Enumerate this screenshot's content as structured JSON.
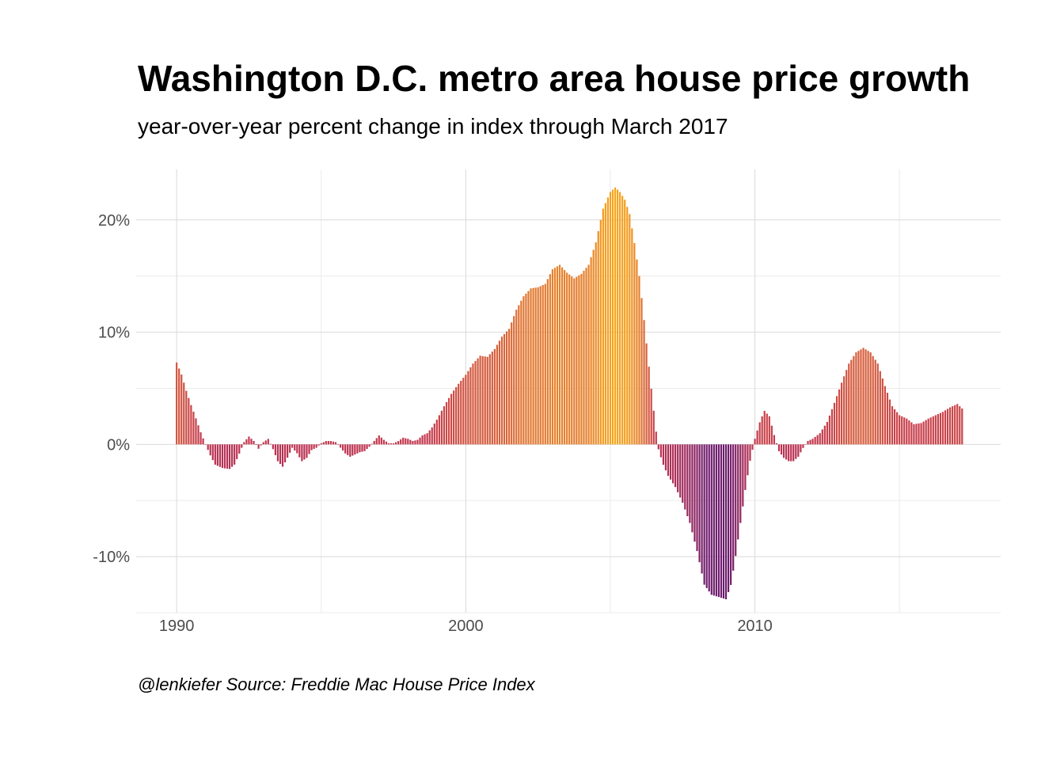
{
  "title": "Washington D.C. metro area house price growth",
  "subtitle": "year-over-year percent change in index through March 2017",
  "caption": "@lenkiefer Source: Freddie Mac House Price Index",
  "chart_data": {
    "type": "bar",
    "title": "Washington D.C. metro area house price growth",
    "subtitle": "year-over-year percent change in index through March 2017",
    "xlabel": "",
    "ylabel": "",
    "x_start": "1990-01",
    "x_end": "2017-03",
    "frequency": "monthly",
    "xlim": [
      1988.6,
      2018.5
    ],
    "ylim": [
      -15,
      24.5
    ],
    "x_ticks": [
      1990,
      2000,
      2010
    ],
    "x_tick_labels": [
      "1990",
      "2000",
      "2010"
    ],
    "y_ticks": [
      -10,
      0,
      10,
      20
    ],
    "y_tick_labels": [
      "-10%",
      "0%",
      "10%",
      "20%"
    ],
    "grid": true,
    "color_scale": {
      "low": "#6a1a6e",
      "mid": "#c2344f",
      "high": "#f7a51b",
      "low_value": -14,
      "mid_value": 0,
      "high_value": 23
    },
    "anchors": [
      [
        1990.0,
        7.3
      ],
      [
        1990.17,
        6.2
      ],
      [
        1990.33,
        4.8
      ],
      [
        1990.5,
        3.5
      ],
      [
        1990.67,
        2.3
      ],
      [
        1990.83,
        1.1
      ],
      [
        1991.0,
        0
      ],
      [
        1991.17,
        -1.0
      ],
      [
        1991.33,
        -1.8
      ],
      [
        1991.58,
        -2.1
      ],
      [
        1991.83,
        -2.2
      ],
      [
        1992.0,
        -1.8
      ],
      [
        1992.17,
        -0.8
      ],
      [
        1992.33,
        0.2
      ],
      [
        1992.5,
        0.7
      ],
      [
        1992.67,
        0.3
      ],
      [
        1992.83,
        -0.4
      ],
      [
        1993.0,
        0.2
      ],
      [
        1993.17,
        0.5
      ],
      [
        1993.33,
        -0.4
      ],
      [
        1993.5,
        -1.5
      ],
      [
        1993.67,
        -2.0
      ],
      [
        1993.83,
        -1.2
      ],
      [
        1994.0,
        -0.3
      ],
      [
        1994.17,
        -0.8
      ],
      [
        1994.33,
        -1.5
      ],
      [
        1994.5,
        -1.2
      ],
      [
        1994.67,
        -0.5
      ],
      [
        1994.83,
        -0.3
      ],
      [
        1995.0,
        0.1
      ],
      [
        1995.17,
        0.3
      ],
      [
        1995.33,
        0.3
      ],
      [
        1995.5,
        0.2
      ],
      [
        1995.67,
        -0.3
      ],
      [
        1995.83,
        -0.8
      ],
      [
        1996.0,
        -1.1
      ],
      [
        1996.17,
        -0.9
      ],
      [
        1996.33,
        -0.7
      ],
      [
        1996.5,
        -0.6
      ],
      [
        1996.67,
        -0.2
      ],
      [
        1996.83,
        0.3
      ],
      [
        1997.0,
        0.8
      ],
      [
        1997.17,
        0.4
      ],
      [
        1997.33,
        0.1
      ],
      [
        1997.5,
        0.1
      ],
      [
        1997.67,
        0.3
      ],
      [
        1997.83,
        0.6
      ],
      [
        1998.0,
        0.5
      ],
      [
        1998.17,
        0.3
      ],
      [
        1998.33,
        0.4
      ],
      [
        1998.5,
        0.8
      ],
      [
        1998.67,
        1.0
      ],
      [
        1998.83,
        1.5
      ],
      [
        1999.0,
        2.2
      ],
      [
        1999.25,
        3.4
      ],
      [
        1999.5,
        4.5
      ],
      [
        1999.75,
        5.4
      ],
      [
        2000.0,
        6.2
      ],
      [
        2000.25,
        7.2
      ],
      [
        2000.5,
        7.9
      ],
      [
        2000.75,
        7.8
      ],
      [
        2001.0,
        8.5
      ],
      [
        2001.25,
        9.6
      ],
      [
        2001.5,
        10.3
      ],
      [
        2001.75,
        12.0
      ],
      [
        2002.0,
        13.2
      ],
      [
        2002.25,
        13.9
      ],
      [
        2002.5,
        14.0
      ],
      [
        2002.75,
        14.3
      ],
      [
        2003.0,
        15.6
      ],
      [
        2003.25,
        16.0
      ],
      [
        2003.5,
        15.3
      ],
      [
        2003.75,
        14.8
      ],
      [
        2004.0,
        15.2
      ],
      [
        2004.25,
        16.0
      ],
      [
        2004.5,
        18.0
      ],
      [
        2004.75,
        21.0
      ],
      [
        2005.0,
        22.5
      ],
      [
        2005.17,
        22.9
      ],
      [
        2005.33,
        22.5
      ],
      [
        2005.5,
        21.8
      ],
      [
        2005.67,
        20.5
      ],
      [
        2005.83,
        18.0
      ],
      [
        2006.0,
        15.0
      ],
      [
        2006.17,
        11.0
      ],
      [
        2006.33,
        7.0
      ],
      [
        2006.5,
        3.0
      ],
      [
        2006.58,
        1.2
      ],
      [
        2006.67,
        -0.5
      ],
      [
        2006.83,
        -1.8
      ],
      [
        2007.0,
        -2.8
      ],
      [
        2007.25,
        -3.8
      ],
      [
        2007.5,
        -5.2
      ],
      [
        2007.75,
        -7.0
      ],
      [
        2008.0,
        -9.5
      ],
      [
        2008.25,
        -12.5
      ],
      [
        2008.5,
        -13.4
      ],
      [
        2008.75,
        -13.6
      ],
      [
        2009.0,
        -13.8
      ],
      [
        2009.17,
        -12.5
      ],
      [
        2009.33,
        -10.0
      ],
      [
        2009.5,
        -7.0
      ],
      [
        2009.67,
        -4.0
      ],
      [
        2009.83,
        -1.5
      ],
      [
        2010.0,
        0.5
      ],
      [
        2010.17,
        2.0
      ],
      [
        2010.33,
        3.0
      ],
      [
        2010.5,
        2.5
      ],
      [
        2010.67,
        0.8
      ],
      [
        2010.83,
        -0.6
      ],
      [
        2011.0,
        -1.2
      ],
      [
        2011.17,
        -1.5
      ],
      [
        2011.33,
        -1.5
      ],
      [
        2011.5,
        -1.1
      ],
      [
        2011.67,
        -0.3
      ],
      [
        2011.83,
        0.3
      ],
      [
        2012.0,
        0.5
      ],
      [
        2012.25,
        1.0
      ],
      [
        2012.5,
        2.0
      ],
      [
        2012.75,
        3.7
      ],
      [
        2013.0,
        5.5
      ],
      [
        2013.25,
        7.2
      ],
      [
        2013.5,
        8.2
      ],
      [
        2013.75,
        8.6
      ],
      [
        2014.0,
        8.2
      ],
      [
        2014.25,
        7.2
      ],
      [
        2014.5,
        5.2
      ],
      [
        2014.75,
        3.4
      ],
      [
        2015.0,
        2.6
      ],
      [
        2015.25,
        2.3
      ],
      [
        2015.5,
        1.8
      ],
      [
        2015.75,
        1.9
      ],
      [
        2016.0,
        2.3
      ],
      [
        2016.25,
        2.6
      ],
      [
        2016.5,
        2.9
      ],
      [
        2016.75,
        3.3
      ],
      [
        2017.0,
        3.6
      ],
      [
        2017.25,
        3.0
      ]
    ]
  }
}
